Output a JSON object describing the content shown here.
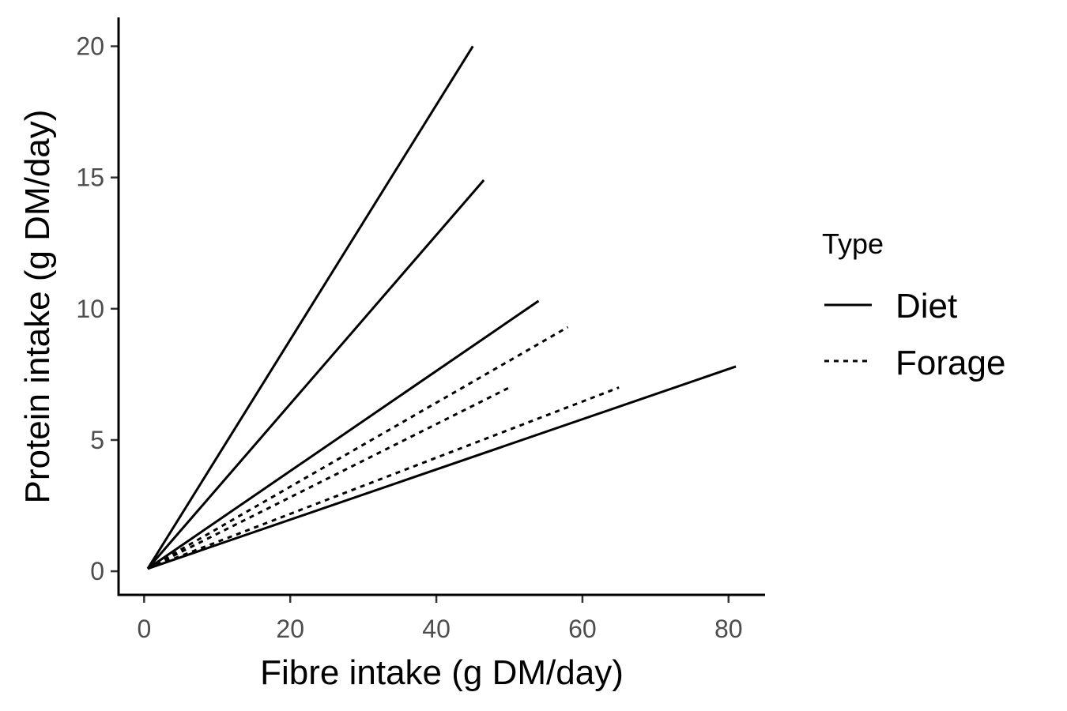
{
  "chart_data": {
    "type": "line",
    "title": "",
    "xlabel": "Fibre intake (g DM/day)",
    "ylabel": "Protein intake (g DM/day)",
    "xlim": [
      -3.5,
      85
    ],
    "ylim": [
      -0.9,
      21.1
    ],
    "x_ticks": [
      0,
      20,
      40,
      60,
      80
    ],
    "y_ticks": [
      0,
      5,
      10,
      15,
      20
    ],
    "grid": false,
    "legend": {
      "title": "Type",
      "position": "right",
      "entries": [
        {
          "label": "Diet",
          "linetype": "solid"
        },
        {
          "label": "Forage",
          "linetype": "dotted"
        }
      ]
    },
    "series": [
      {
        "type": "Diet",
        "linetype": "solid",
        "x": [
          0.5,
          45
        ],
        "y": [
          0.1,
          20
        ]
      },
      {
        "type": "Diet",
        "linetype": "solid",
        "x": [
          0.5,
          46.5
        ],
        "y": [
          0.1,
          14.9
        ]
      },
      {
        "type": "Diet",
        "linetype": "solid",
        "x": [
          0.5,
          54
        ],
        "y": [
          0.1,
          10.3
        ]
      },
      {
        "type": "Diet",
        "linetype": "solid",
        "x": [
          0.5,
          81
        ],
        "y": [
          0.1,
          7.8
        ]
      },
      {
        "type": "Forage",
        "linetype": "dotted",
        "x": [
          0.5,
          58
        ],
        "y": [
          0.1,
          9.3
        ]
      },
      {
        "type": "Forage",
        "linetype": "dotted",
        "x": [
          0.5,
          50
        ],
        "y": [
          0.1,
          7
        ]
      },
      {
        "type": "Forage",
        "linetype": "dotted",
        "x": [
          0.5,
          65
        ],
        "y": [
          0.1,
          7
        ]
      }
    ]
  }
}
